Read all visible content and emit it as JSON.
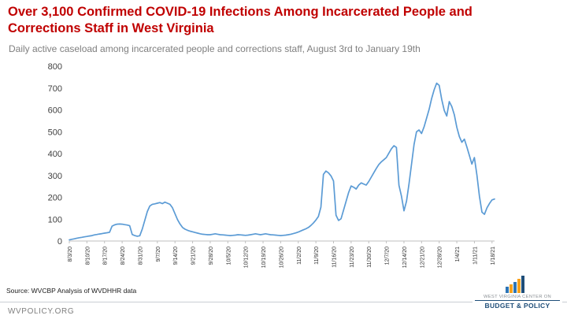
{
  "header": {
    "title": "Over 3,100 Confirmed COVID-19 Infections Among Incarcerated People and Corrections Staff in West Virginia",
    "subtitle": "Daily active caseload among incarcerated people and corrections staff, August 3rd to January 19th"
  },
  "chart_data": {
    "type": "line",
    "series_name": "Daily active caseload among incarcerated people and corrections staff",
    "x_labels": [
      "8/3/20",
      "8/10/20",
      "8/17/20",
      "8/24/20",
      "8/31/20",
      "9/7/20",
      "9/14/20",
      "9/21/20",
      "9/28/20",
      "10/5/20",
      "10/12/20",
      "10/19/20",
      "10/26/20",
      "11/2/20",
      "11/9/20",
      "11/16/20",
      "11/23/20",
      "11/30/20",
      "12/7/20",
      "12/14/20",
      "12/21/20",
      "12/28/20",
      "1/4/21",
      "1/11/21",
      "1/18/21"
    ],
    "x_label_interval_days": 7,
    "values": [
      5,
      8,
      10,
      13,
      15,
      17,
      19,
      21,
      23,
      25,
      28,
      30,
      32,
      34,
      36,
      38,
      40,
      68,
      74,
      77,
      78,
      77,
      75,
      73,
      70,
      30,
      25,
      22,
      24,
      55,
      95,
      135,
      160,
      168,
      170,
      173,
      176,
      171,
      178,
      173,
      168,
      152,
      125,
      98,
      78,
      62,
      54,
      49,
      45,
      42,
      39,
      36,
      33,
      31,
      30,
      29,
      29,
      31,
      33,
      31,
      29,
      28,
      27,
      26,
      25,
      26,
      27,
      29,
      28,
      27,
      26,
      27,
      29,
      31,
      33,
      31,
      29,
      31,
      33,
      31,
      29,
      28,
      27,
      26,
      25,
      26,
      27,
      29,
      31,
      34,
      37,
      41,
      46,
      51,
      56,
      62,
      71,
      82,
      96,
      112,
      155,
      305,
      320,
      312,
      298,
      275,
      118,
      94,
      102,
      142,
      182,
      222,
      252,
      246,
      238,
      256,
      266,
      261,
      256,
      272,
      292,
      312,
      332,
      350,
      362,
      372,
      382,
      402,
      422,
      436,
      428,
      255,
      205,
      138,
      182,
      262,
      352,
      442,
      500,
      508,
      492,
      522,
      562,
      602,
      652,
      692,
      722,
      712,
      648,
      598,
      572,
      638,
      615,
      578,
      520,
      478,
      452,
      466,
      430,
      392,
      352,
      382,
      302,
      205,
      132,
      122,
      152,
      172,
      188,
      192
    ],
    "ylim": [
      0,
      800
    ],
    "y_ticks": [
      0,
      100,
      200,
      300,
      400,
      500,
      600,
      700,
      800
    ],
    "line_color": "#5B9BD5",
    "grid": false,
    "legend": false
  },
  "footer": {
    "source": "Source: WVCBP Analysis of WVDHHR data",
    "site": "WVPOLICY.ORG",
    "logo": {
      "line1": "WEST VIRGINIA CENTER ON",
      "line2": "BUDGET & POLICY",
      "navy": "#1F4E79",
      "blue": "#2E75B6",
      "orange": "#F9A11B"
    }
  },
  "colors": {
    "title": "#C00000",
    "subtitle": "#7F7F7F",
    "axis_text": "#404040",
    "line": "#5B9BD5"
  }
}
